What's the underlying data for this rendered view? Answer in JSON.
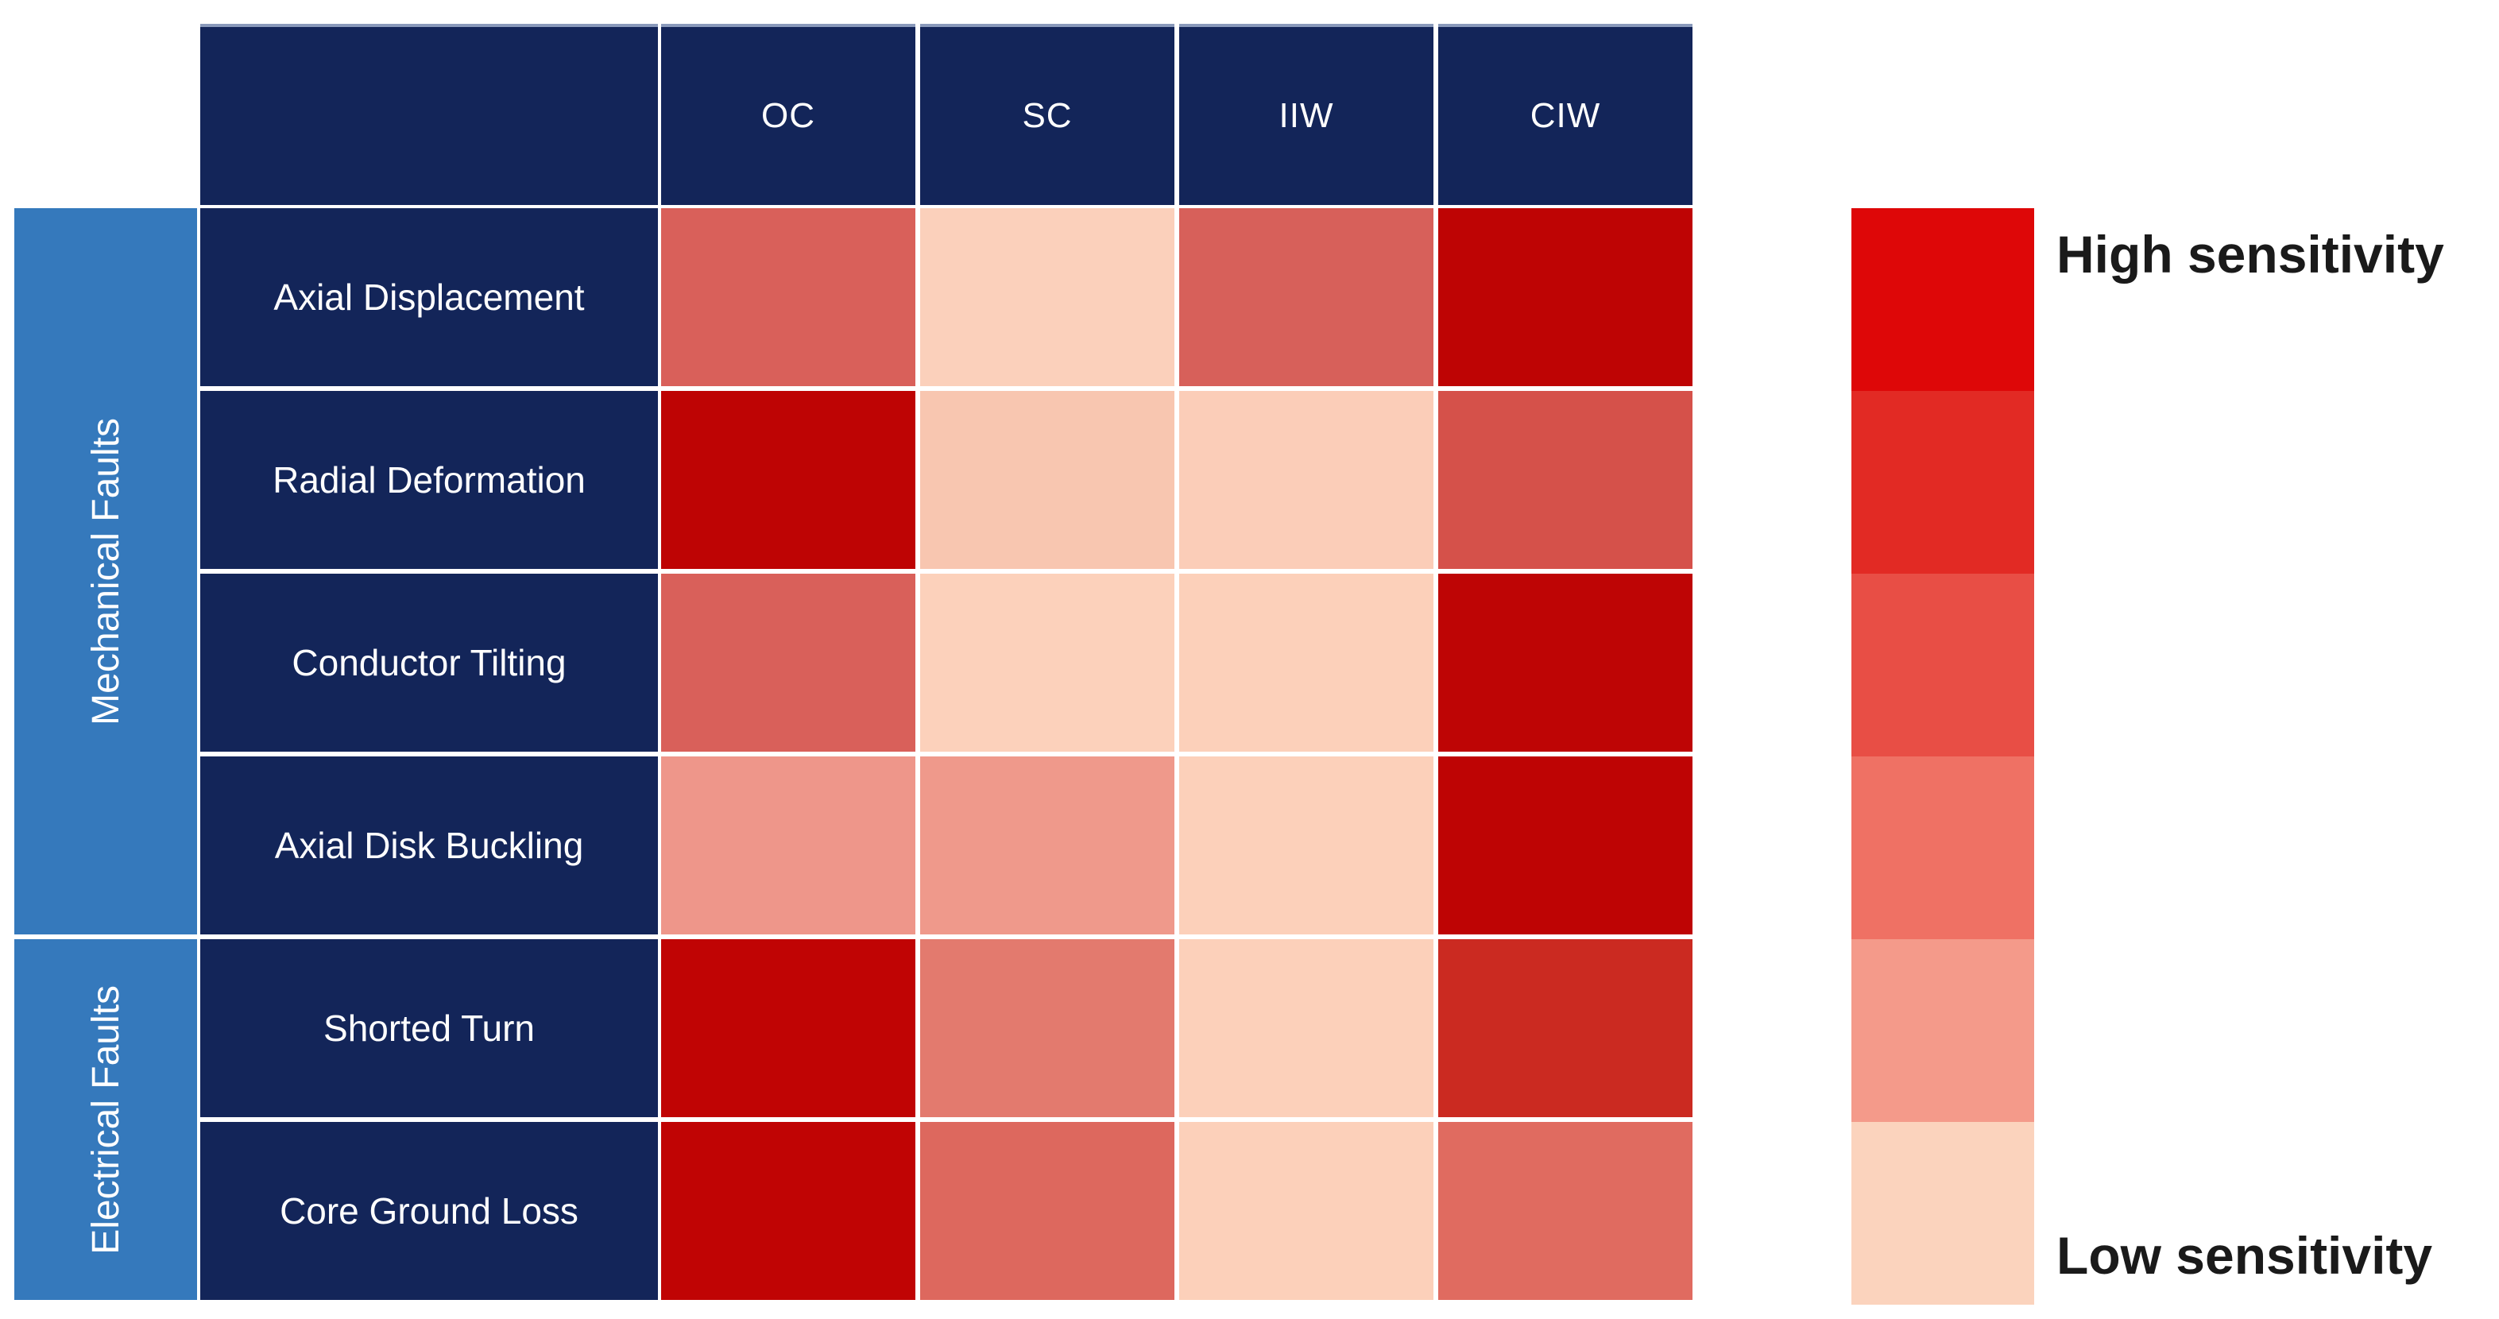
{
  "colors": {
    "background": "#FFFFFF",
    "header_bg": "#132559",
    "row_label_bg": "#132559",
    "group_bg": "#3579BC",
    "grid_gap": "#FFFFFF",
    "cell_text": "#FFFFFF",
    "legend_text": "#1A1A1A"
  },
  "header": {
    "columns": [
      "OC",
      "SC",
      "IIW",
      "CIW"
    ]
  },
  "groups": [
    {
      "label": "Mechanical Faults",
      "rows_span": 4
    },
    {
      "label": "Electrical Faults",
      "rows_span": 2
    }
  ],
  "rows": [
    "Axial Displacement",
    "Radial Deformation",
    "Conductor Tilting",
    "Axial Disk Buckling",
    "Shorted Turn",
    "Core Ground Loss"
  ],
  "legend": {
    "high_label": "High sensitivity",
    "low_label": "Low sensitivity",
    "swatches_top_to_bottom": [
      "#DE0708",
      "#E22A24",
      "#E84E45",
      "#EF7164",
      "#F49A8A",
      "#FBD3BD"
    ]
  },
  "chart_data": {
    "type": "heatmap",
    "title": "",
    "columns": [
      "OC",
      "SC",
      "IIW",
      "CIW"
    ],
    "row_groups": [
      {
        "group": "Mechanical Faults",
        "rows": [
          "Axial Displacement",
          "Radial Deformation",
          "Conductor Tilting",
          "Axial Disk Buckling"
        ]
      },
      {
        "group": "Electrical Faults",
        "rows": [
          "Shorted Turn",
          "Core Ground Loss"
        ]
      }
    ],
    "rows": [
      "Axial Displacement",
      "Radial Deformation",
      "Conductor Tilting",
      "Axial Disk Buckling",
      "Shorted Turn",
      "Core Ground Loss"
    ],
    "cell_colors": [
      [
        "#D9605A",
        "#FBD0BB",
        "#D7605A",
        "#BE0404"
      ],
      [
        "#BE0404",
        "#F8C6B0",
        "#FBCDB8",
        "#D5514A"
      ],
      [
        "#D9605A",
        "#FCD1BB",
        "#FCD0BA",
        "#BE0505"
      ],
      [
        "#EE968A",
        "#EF998B",
        "#FCD0BA",
        "#BE0404"
      ],
      [
        "#C00404",
        "#E37A6E",
        "#FCD0BA",
        "#CB2A21"
      ],
      [
        "#C00404",
        "#DD685E",
        "#FCD0BA",
        "#E06B60"
      ]
    ],
    "sensitivity_estimates_0to1": [
      [
        0.75,
        0.1,
        0.75,
        1.0
      ],
      [
        1.0,
        0.15,
        0.12,
        0.8
      ],
      [
        0.75,
        0.1,
        0.1,
        1.0
      ],
      [
        0.45,
        0.45,
        0.1,
        1.0
      ],
      [
        1.0,
        0.6,
        0.1,
        0.9
      ],
      [
        1.0,
        0.7,
        0.1,
        0.7
      ]
    ],
    "scale": {
      "high": "High sensitivity",
      "low": "Low sensitivity",
      "legend_colors_top_to_bottom": [
        "#DE0708",
        "#E22A24",
        "#E84E45",
        "#EF7164",
        "#F49A8A",
        "#FBD3BD"
      ]
    },
    "legend_position": "right",
    "grid": "white gaps between cells"
  }
}
